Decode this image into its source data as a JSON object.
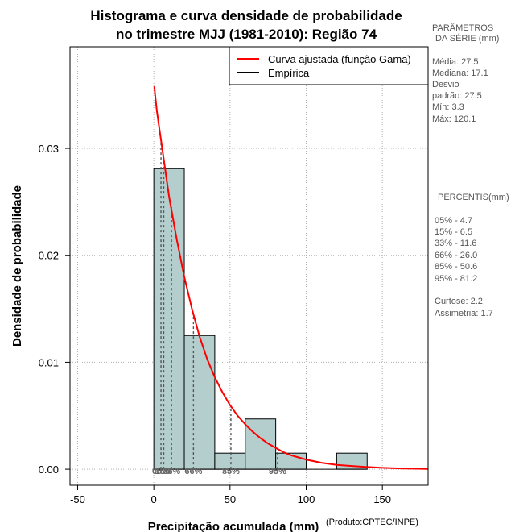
{
  "chart_data": {
    "type": "bar",
    "title_line1": "Histograma e curva densidade de probabilidade",
    "title_line2": "no trimestre MJJ (1981-2010): Região 74",
    "xlabel": "Precipitação acumulada (mm)",
    "ylabel": "Densidade de probabilidade",
    "credit": "(Produto:CPTEC/INPE)",
    "xlim": [
      -55,
      180
    ],
    "ylim": [
      -0.0015,
      0.0395
    ],
    "x_ticks": [
      -50,
      0,
      50,
      100,
      150
    ],
    "x_tick_labels": [
      "-50",
      "0",
      "50",
      "100",
      "150"
    ],
    "y_ticks": [
      0.0,
      0.01,
      0.02,
      0.03
    ],
    "y_tick_labels": [
      "0.00",
      "0.01",
      "0.02",
      "0.03"
    ],
    "grid": true,
    "bins": [
      {
        "start": 0,
        "end": 20,
        "density": 0.0281
      },
      {
        "start": 20,
        "end": 40,
        "density": 0.0125
      },
      {
        "start": 40,
        "end": 60,
        "density": 0.0015
      },
      {
        "start": 60,
        "end": 80,
        "density": 0.0047
      },
      {
        "start": 80,
        "end": 100,
        "density": 0.0015
      },
      {
        "start": 100,
        "end": 120,
        "density": 0.0
      },
      {
        "start": 120,
        "end": 140,
        "density": 0.0015
      }
    ],
    "fitted_curve": {
      "name": "Curva ajustada (função Gama)",
      "color": "#ff0000",
      "x": [
        0.3,
        2,
        5,
        10,
        15,
        20,
        25,
        30,
        35,
        40,
        45,
        50,
        55,
        60,
        65,
        70,
        75,
        80,
        85,
        90,
        95,
        100,
        110,
        120,
        130,
        140,
        150,
        160,
        170,
        180
      ],
      "y": [
        0.0358,
        0.0335,
        0.0305,
        0.0255,
        0.0215,
        0.018,
        0.015,
        0.0124,
        0.0103,
        0.0086,
        0.0072,
        0.006,
        0.005,
        0.0042,
        0.0035,
        0.0029,
        0.0024,
        0.002,
        0.0016,
        0.0013,
        0.0011,
        0.0009,
        0.0006,
        0.0004,
        0.0003,
        0.0002,
        0.00013,
        8e-05,
        5e-05,
        3e-05
      ]
    },
    "empirical_legend": {
      "name": "Empírica",
      "color": "#000000"
    },
    "bar_color": "#b4cece",
    "percentiles": [
      {
        "label": "05%",
        "x": 4.7,
        "height": 0.0305
      },
      {
        "label": "15%",
        "x": 6.5,
        "height": 0.029
      },
      {
        "label": "33%",
        "x": 11.6,
        "height": 0.0245
      },
      {
        "label": "66%",
        "x": 26.0,
        "height": 0.0145
      },
      {
        "label": "85%",
        "x": 50.6,
        "height": 0.006
      },
      {
        "label": "95%",
        "x": 81.2,
        "height": 0.002
      }
    ]
  },
  "side_panel": {
    "params_title_1": "PARÂMETROS",
    "params_title_2": "DA SÉRIE (mm)",
    "media": "Média:  27.5",
    "mediana": "Mediana:  17.1",
    "desvio_1": "Desvio",
    "desvio_2": "padrão:  27.5",
    "min": "Mín:  3.3",
    "max": "Máx:  120.1",
    "percentis_title": "PERCENTIS(mm)",
    "p05": "05% -  4.7",
    "p15": "15% -  6.5",
    "p33": "33% -  11.6",
    "p66": "66% -  26.0",
    "p85": "85% -  50.6",
    "p95": "95% -  81.2",
    "curtose": "Curtose:  2.2",
    "assimetria": "Assimetria:  1.7"
  }
}
